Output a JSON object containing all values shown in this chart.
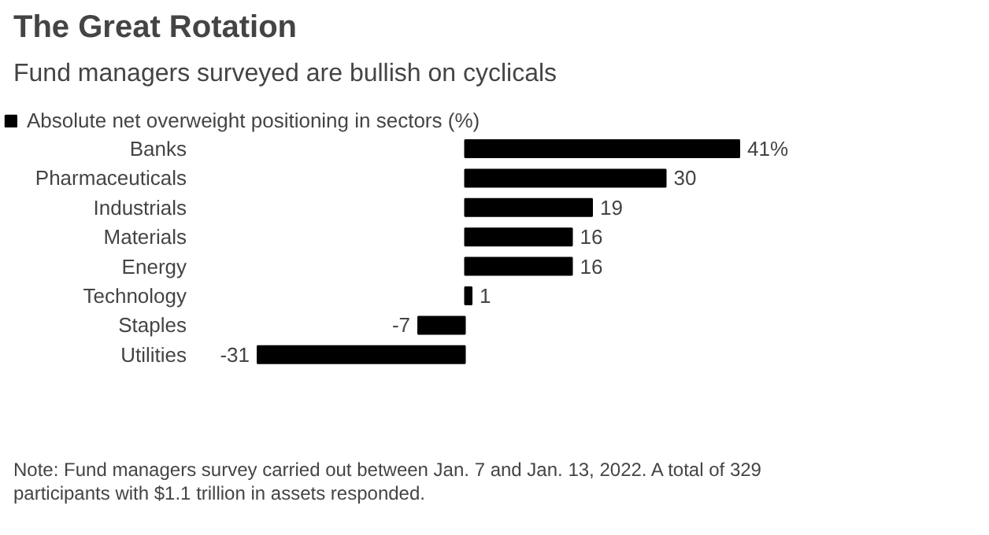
{
  "chart_data": {
    "type": "bar",
    "orientation": "horizontal",
    "title": "The Great Rotation",
    "subtitle": "Fund managers surveyed are bullish on cyclicals",
    "categories": [
      "Banks",
      "Pharmaceuticals",
      "Industrials",
      "Materials",
      "Energy",
      "Technology",
      "Staples",
      "Utilities"
    ],
    "series": [
      {
        "name": "Absolute net overweight positioning in sectors (%)",
        "color": "#000000",
        "values": [
          41,
          30,
          19,
          16,
          16,
          1,
          -7,
          -31
        ],
        "value_labels": [
          "41%",
          "30",
          "19",
          "16",
          "16",
          "1",
          "-7",
          "-31"
        ]
      }
    ],
    "legend": "top left",
    "grid": false,
    "annotations": [
      "Note: Fund managers survey carried out between Jan. 7 and Jan. 13, 2022. A total of 329 participants with $1.1 trillion in assets responded."
    ]
  }
}
